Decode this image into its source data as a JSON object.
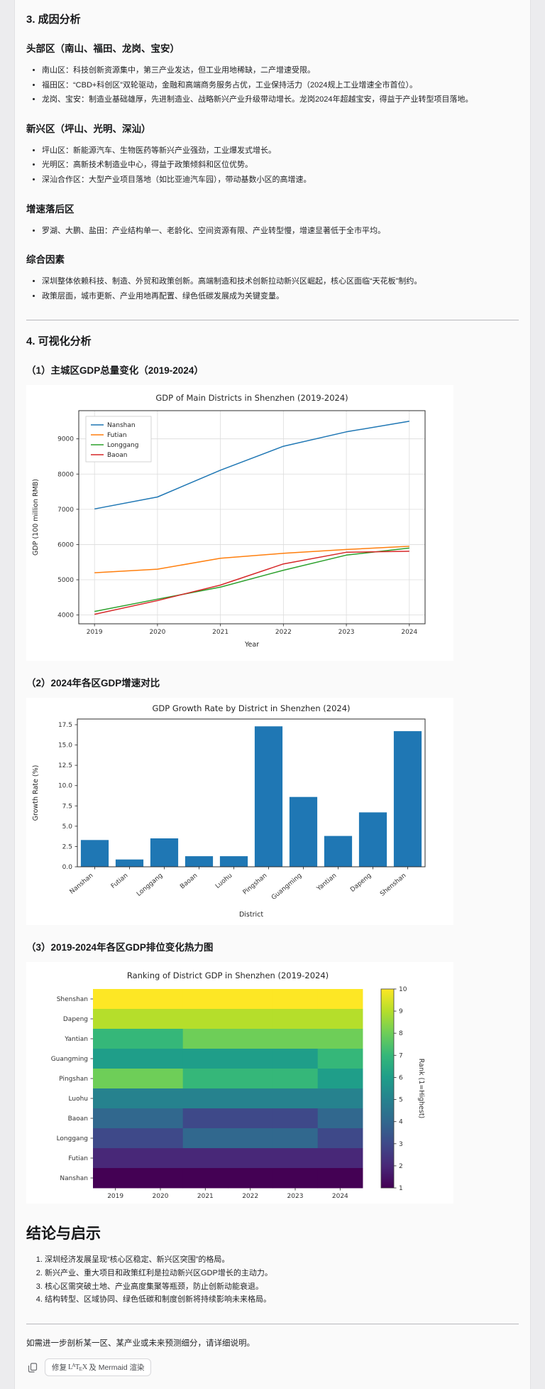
{
  "doc": {
    "s3_title": "3. 成因分析",
    "groups": [
      {
        "heading": "头部区（南山、福田、龙岗、宝安）",
        "bullets": [
          "南山区：科技创新资源集中，第三产业发达，但工业用地稀缺，二产增速受限。",
          "福田区：“CBD+科创区”双轮驱动，金融和高端商务服务占优，工业保持活力（2024规上工业增速全市首位）。",
          "龙岗、宝安：制造业基础雄厚，先进制造业、战略新兴产业升级带动增长。龙岗2024年超越宝安，得益于产业转型项目落地。"
        ]
      },
      {
        "heading": "新兴区（坪山、光明、深汕）",
        "bullets": [
          "坪山区：新能源汽车、生物医药等新兴产业强劲，工业爆发式增长。",
          "光明区：高新技术制造业中心，得益于政策倾斜和区位优势。",
          "深汕合作区：大型产业项目落地（如比亚迪汽车园），带动基数小区的高增速。"
        ]
      },
      {
        "heading": "增速落后区",
        "bullets": [
          "罗湖、大鹏、盐田：产业结构单一、老龄化、空间资源有限、产业转型慢，增速显著低于全市平均。"
        ]
      },
      {
        "heading": "综合因素",
        "bullets": [
          "深圳整体依赖科技、制造、外贸和政策创新。高端制造和技术创新拉动新兴区崛起，核心区面临“天花板”制约。",
          "政策层面，城市更新、产业用地再配置、绿色低碳发展成为关键变量。"
        ]
      }
    ],
    "s4_title": "4. 可视化分析",
    "fig_headings": [
      "（1）主城区GDP总量变化（2019-2024）",
      "（2）2024年各区GDP增速对比",
      "（3）2019-2024年各区GDP排位变化热力图"
    ],
    "conclusion_title": "结论与启示",
    "conclusions": [
      "深圳经济发展呈现“核心区稳定、新兴区突围”的格局。",
      "新兴产业、重大项目和政策红利是拉动新兴区GDP增长的主动力。",
      "核心区需突破土地、产业高度集聚等瓶颈，防止创新动能衰退。",
      "结构转型、区域协同、绿色低碳和制度创新将持续影响未来格局。"
    ],
    "closing": "如需进一步剖析某一区、某产业或未来预测细分，请详细说明。"
  },
  "footer": {
    "fix_prefix": "修复 ",
    "latex": {
      "l": "L",
      "a": "A",
      "t": "T",
      "e": "E",
      "x": "X"
    },
    "fix_suffix": " 及 Mermaid 渲染"
  },
  "chart_data": [
    {
      "type": "line",
      "title": "GDP of Main Districts in Shenzhen (2019-2024)",
      "xlabel": "Year",
      "ylabel": "GDP (100 million RMB)",
      "x": [
        2019,
        2020,
        2021,
        2022,
        2023,
        2024
      ],
      "ylim": [
        3750,
        9800
      ],
      "yticks": [
        4000,
        5000,
        6000,
        7000,
        8000,
        9000
      ],
      "grid": true,
      "legend_position": "upper left",
      "series": [
        {
          "name": "Nanshan",
          "color": "#1f77b4",
          "values": [
            7010,
            7350,
            8110,
            8790,
            9200,
            9500
          ]
        },
        {
          "name": "Futian",
          "color": "#ff7f0e",
          "values": [
            5200,
            5300,
            5610,
            5750,
            5860,
            5950
          ]
        },
        {
          "name": "Longgang",
          "color": "#2ca02c",
          "values": [
            4100,
            4450,
            4790,
            5270,
            5700,
            5900
          ]
        },
        {
          "name": "Baoan",
          "color": "#d62728",
          "values": [
            4020,
            4410,
            4850,
            5450,
            5780,
            5810
          ]
        }
      ]
    },
    {
      "type": "bar",
      "title": "GDP Growth Rate by District in Shenzhen (2024)",
      "xlabel": "District",
      "ylabel": "Growth Rate (%)",
      "categories": [
        "Nanshan",
        "Futian",
        "Longgang",
        "Baoan",
        "Luohu",
        "Pingshan",
        "Guangming",
        "Yantian",
        "Dapeng",
        "Shenshan"
      ],
      "values": [
        3.3,
        0.9,
        3.5,
        1.3,
        1.3,
        17.3,
        8.6,
        3.8,
        6.7,
        16.7
      ],
      "bar_color": "#1f77b4",
      "yticks": [
        0,
        2.5,
        5,
        7.5,
        10,
        12.5,
        15,
        17.5
      ],
      "ylim": [
        0,
        18.2
      ],
      "grid": false
    },
    {
      "type": "heatmap",
      "title": "Ranking of District GDP in Shenzhen (2019-2024)",
      "colorbar_label": "Rank (1=Highest)",
      "x": [
        2019,
        2020,
        2021,
        2022,
        2023,
        2024
      ],
      "rows": [
        "Shenshan",
        "Dapeng",
        "Yantian",
        "Guangming",
        "Pingshan",
        "Luohu",
        "Baoan",
        "Longgang",
        "Futian",
        "Nanshan"
      ],
      "values": [
        [
          10,
          10,
          10,
          10,
          10,
          10
        ],
        [
          9,
          9,
          9,
          9,
          9,
          9
        ],
        [
          7,
          7,
          8,
          8,
          8,
          8
        ],
        [
          6,
          6,
          6,
          6,
          6,
          7
        ],
        [
          8,
          8,
          7,
          7,
          7,
          6
        ],
        [
          5,
          5,
          5,
          5,
          5,
          5
        ],
        [
          4,
          4,
          3,
          3,
          3,
          4
        ],
        [
          3,
          3,
          4,
          4,
          4,
          3
        ],
        [
          2,
          2,
          2,
          2,
          2,
          2
        ],
        [
          1,
          1,
          1,
          1,
          1,
          1
        ]
      ],
      "colormap": "viridis",
      "viridis_colors": [
        "#440154",
        "#482878",
        "#3e4989",
        "#31688e",
        "#26828e",
        "#1f9e89",
        "#35b779",
        "#6ece58",
        "#b5de2b",
        "#fde725"
      ],
      "colorbar_ticks": [
        1,
        2,
        3,
        4,
        5,
        6,
        7,
        8,
        9,
        10
      ]
    }
  ]
}
